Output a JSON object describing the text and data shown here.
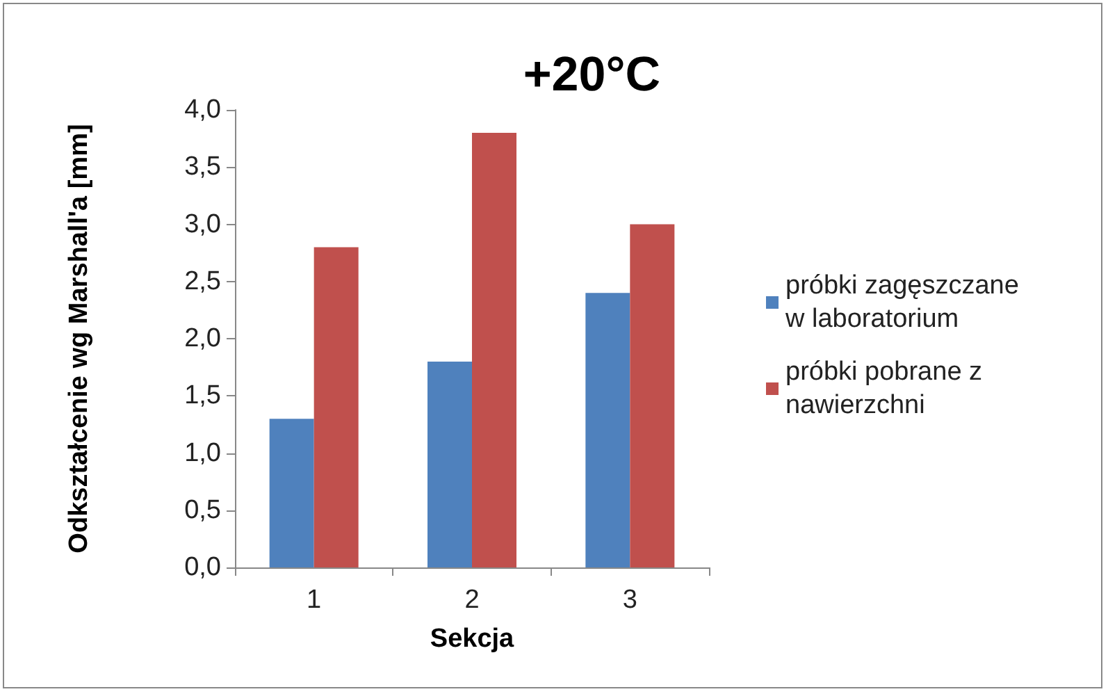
{
  "chart_data": {
    "type": "bar",
    "title": "+20°C",
    "xlabel": "Sekcja",
    "ylabel": "Odkształcenie wg Marshall'a [mm]",
    "categories": [
      "1",
      "2",
      "3"
    ],
    "series": [
      {
        "name": "próbki zagęszczane w laboratorium",
        "color": "#4f81bd",
        "values": [
          1.3,
          1.8,
          2.4
        ]
      },
      {
        "name": "próbki pobrane z nawierzchni",
        "color": "#c0504d",
        "values": [
          2.8,
          3.8,
          3.0
        ]
      }
    ],
    "ylim": [
      0,
      4
    ],
    "yticks": [
      {
        "value": 0,
        "label": "0,0"
      },
      {
        "value": 0.5,
        "label": "0,5"
      },
      {
        "value": 1,
        "label": "1,0"
      },
      {
        "value": 1.5,
        "label": "1,5"
      },
      {
        "value": 2,
        "label": "2,0"
      },
      {
        "value": 2.5,
        "label": "2,5"
      },
      {
        "value": 3,
        "label": "3,0"
      },
      {
        "value": 3.5,
        "label": "3,5"
      },
      {
        "value": 4,
        "label": "4,0"
      }
    ],
    "grid": false,
    "legend": "right"
  }
}
